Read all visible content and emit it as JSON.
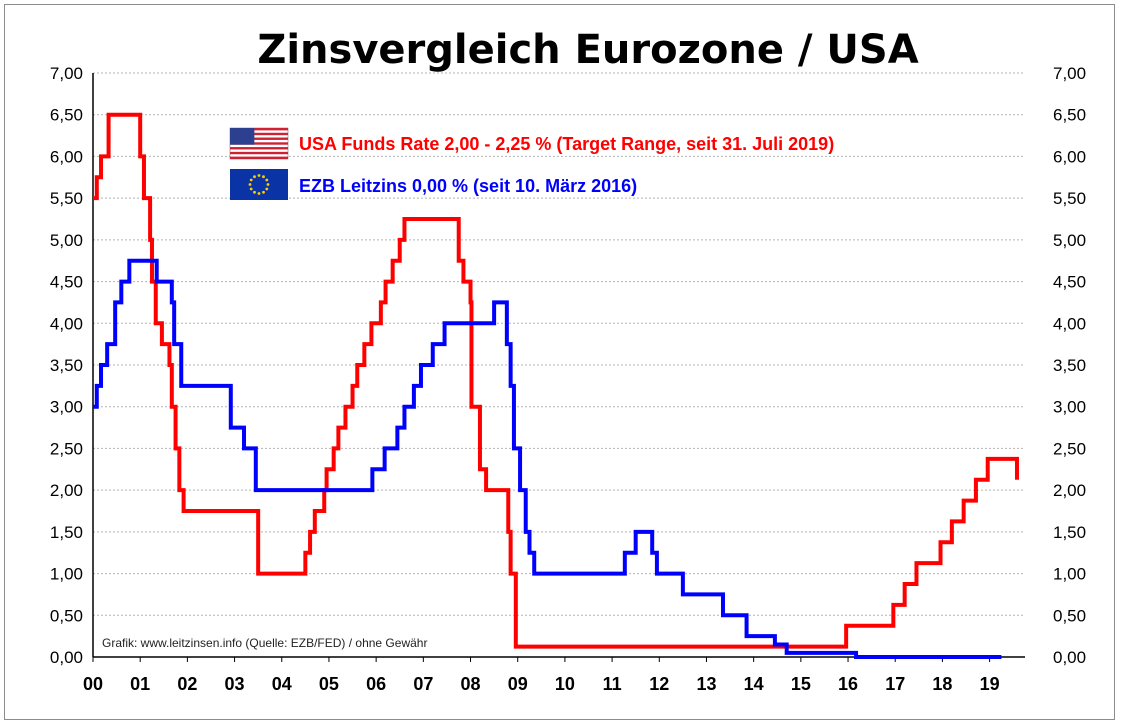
{
  "chart_data": {
    "type": "line",
    "title": "Zinsvergleich Eurozone / USA",
    "xlabel": "",
    "ylabel": "",
    "xlim": [
      2000.0,
      2019.75
    ],
    "ylim": [
      0,
      7
    ],
    "grid": true,
    "legend_position": "top-center",
    "y_ticks": [
      "0,00",
      "0,50",
      "1,00",
      "1,50",
      "2,00",
      "2,50",
      "3,00",
      "3,50",
      "4,00",
      "4,50",
      "5,00",
      "5,50",
      "6,00",
      "6,50",
      "7,00"
    ],
    "x_ticks": [
      "00",
      "01",
      "02",
      "03",
      "04",
      "05",
      "06",
      "07",
      "08",
      "09",
      "10",
      "11",
      "12",
      "13",
      "14",
      "15",
      "16",
      "17",
      "18",
      "19"
    ],
    "series": [
      {
        "name": "USA Funds Rate 2,00 - 2,25 % (Target Range, seit 31. Juli 2019)",
        "color": "#ff0000",
        "icon": "us-flag-icon",
        "points": [
          [
            2000.0,
            5.5
          ],
          [
            2000.08,
            5.75
          ],
          [
            2000.17,
            6.0
          ],
          [
            2000.33,
            6.5
          ],
          [
            2000.96,
            6.5
          ],
          [
            2001.0,
            6.0
          ],
          [
            2001.08,
            5.5
          ],
          [
            2001.21,
            5.0
          ],
          [
            2001.25,
            4.5
          ],
          [
            2001.33,
            4.0
          ],
          [
            2001.46,
            3.75
          ],
          [
            2001.62,
            3.5
          ],
          [
            2001.67,
            3.0
          ],
          [
            2001.75,
            2.5
          ],
          [
            2001.83,
            2.0
          ],
          [
            2001.92,
            1.75
          ],
          [
            2002.88,
            1.75
          ],
          [
            2003.5,
            1.0
          ],
          [
            2004.5,
            1.25
          ],
          [
            2004.6,
            1.5
          ],
          [
            2004.7,
            1.75
          ],
          [
            2004.9,
            2.0
          ],
          [
            2004.95,
            2.25
          ],
          [
            2005.1,
            2.5
          ],
          [
            2005.2,
            2.75
          ],
          [
            2005.35,
            3.0
          ],
          [
            2005.5,
            3.25
          ],
          [
            2005.6,
            3.5
          ],
          [
            2005.75,
            3.75
          ],
          [
            2005.9,
            4.0
          ],
          [
            2006.1,
            4.25
          ],
          [
            2006.2,
            4.5
          ],
          [
            2006.35,
            4.75
          ],
          [
            2006.5,
            5.0
          ],
          [
            2006.6,
            5.25
          ],
          [
            2007.71,
            5.25
          ],
          [
            2007.75,
            4.75
          ],
          [
            2007.85,
            4.5
          ],
          [
            2008.0,
            4.25
          ],
          [
            2008.02,
            3.0
          ],
          [
            2008.2,
            2.25
          ],
          [
            2008.33,
            2.0
          ],
          [
            2008.8,
            1.5
          ],
          [
            2008.85,
            1.0
          ],
          [
            2008.96,
            0.125
          ],
          [
            2015.96,
            0.375
          ],
          [
            2016.96,
            0.625
          ],
          [
            2017.2,
            0.875
          ],
          [
            2017.45,
            1.125
          ],
          [
            2017.96,
            1.375
          ],
          [
            2018.2,
            1.625
          ],
          [
            2018.45,
            1.875
          ],
          [
            2018.71,
            2.125
          ],
          [
            2018.96,
            2.375
          ],
          [
            2019.58,
            2.125
          ]
        ]
      },
      {
        "name": "EZB Leitzins 0,00 %  (seit 10. März 2016)",
        "color": "#0000ff",
        "icon": "eu-flag-icon",
        "points": [
          [
            2000.0,
            3.0
          ],
          [
            2000.08,
            3.25
          ],
          [
            2000.17,
            3.5
          ],
          [
            2000.3,
            3.75
          ],
          [
            2000.47,
            4.25
          ],
          [
            2000.6,
            4.5
          ],
          [
            2000.77,
            4.75
          ],
          [
            2001.35,
            4.5
          ],
          [
            2001.67,
            4.25
          ],
          [
            2001.72,
            3.75
          ],
          [
            2001.87,
            3.25
          ],
          [
            2002.92,
            2.75
          ],
          [
            2003.2,
            2.5
          ],
          [
            2003.45,
            2.0
          ],
          [
            2005.92,
            2.25
          ],
          [
            2006.18,
            2.5
          ],
          [
            2006.45,
            2.75
          ],
          [
            2006.6,
            3.0
          ],
          [
            2006.8,
            3.25
          ],
          [
            2006.95,
            3.5
          ],
          [
            2007.2,
            3.75
          ],
          [
            2007.45,
            4.0
          ],
          [
            2008.5,
            4.25
          ],
          [
            2008.77,
            3.75
          ],
          [
            2008.85,
            3.25
          ],
          [
            2008.92,
            2.5
          ],
          [
            2009.05,
            2.0
          ],
          [
            2009.17,
            1.5
          ],
          [
            2009.25,
            1.25
          ],
          [
            2009.35,
            1.0
          ],
          [
            2011.27,
            1.25
          ],
          [
            2011.5,
            1.5
          ],
          [
            2011.85,
            1.25
          ],
          [
            2011.95,
            1.0
          ],
          [
            2012.5,
            0.75
          ],
          [
            2013.35,
            0.5
          ],
          [
            2013.85,
            0.25
          ],
          [
            2014.45,
            0.15
          ],
          [
            2014.7,
            0.05
          ],
          [
            2016.17,
            0.0
          ],
          [
            2019.25,
            0.0
          ]
        ]
      }
    ]
  },
  "source_note": "Grafik: www.leitzinsen.info (Quelle: EZB/FED) / ohne Gewähr"
}
